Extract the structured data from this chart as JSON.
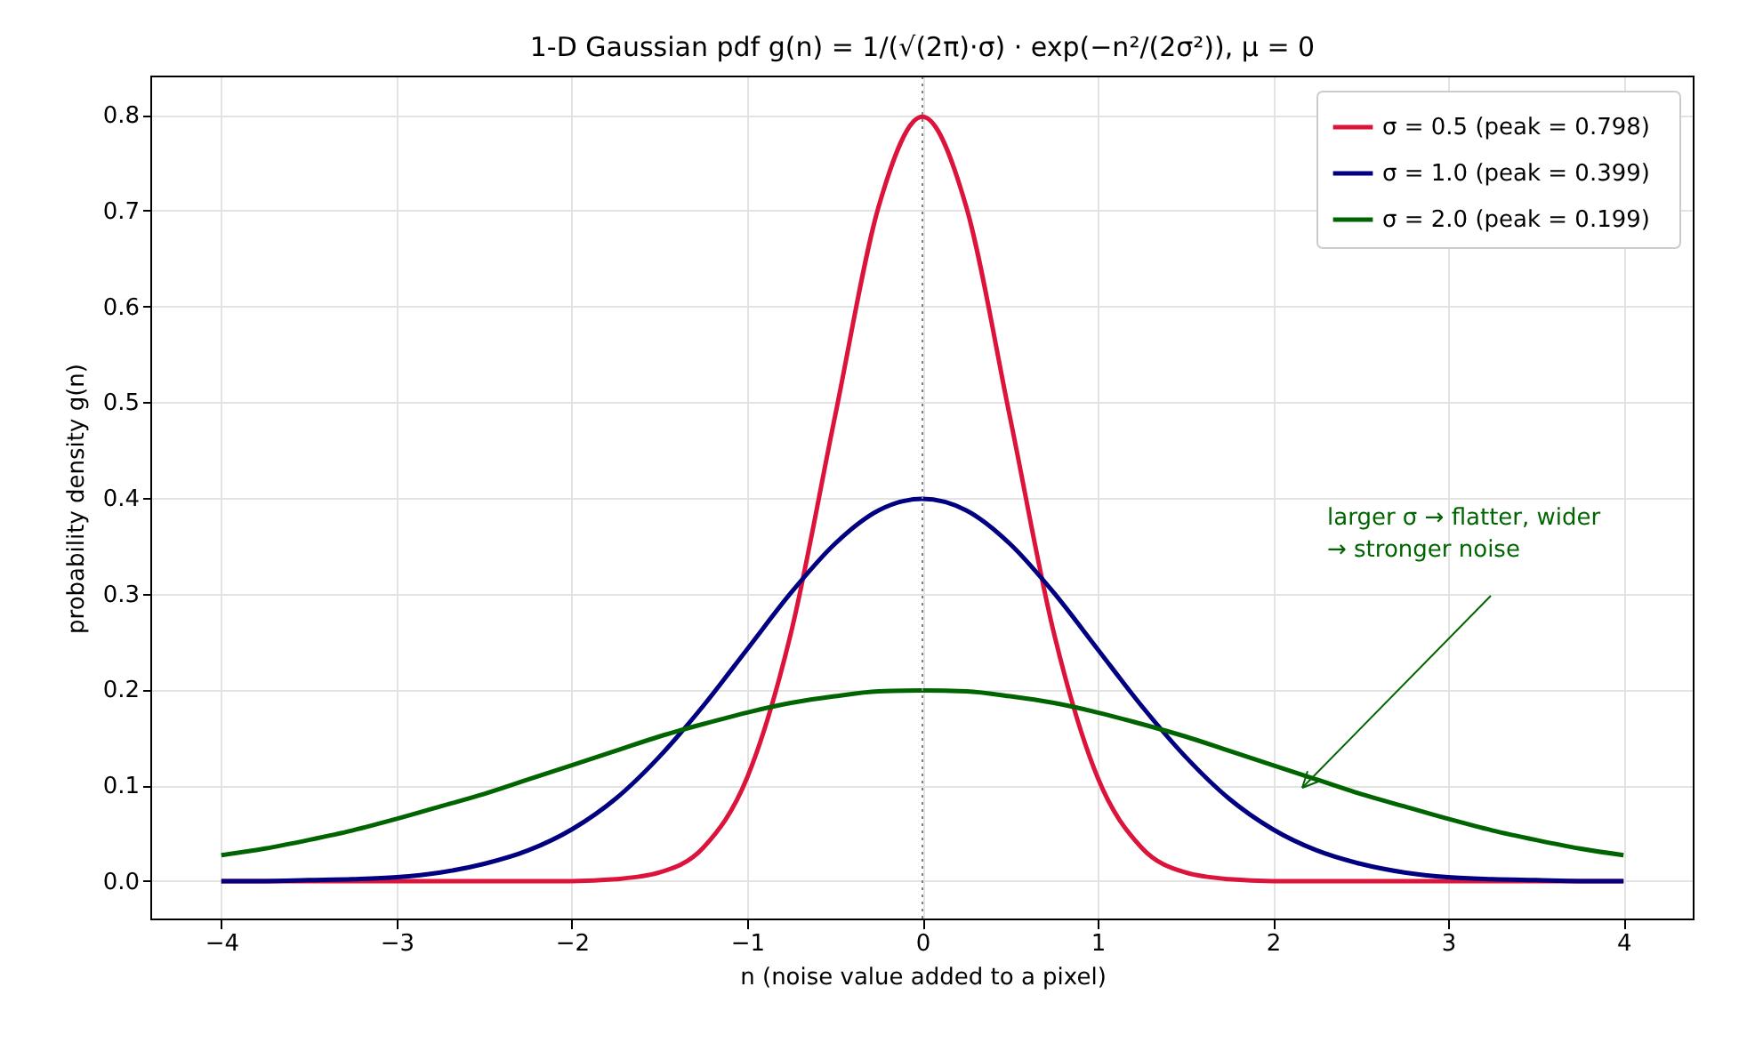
{
  "chart_data": {
    "type": "line",
    "title": "1-D Gaussian pdf  g(n) = 1/(√(2π)·σ) · exp(−n²/(2σ²)),  μ = 0",
    "xlabel": "n  (noise value added to a pixel)",
    "ylabel": "probability density  g(n)",
    "x": [
      -4,
      -3.75,
      -3.5,
      -3.25,
      -3,
      -2.75,
      -2.5,
      -2.25,
      -2,
      -1.75,
      -1.5,
      -1.25,
      -1,
      -0.75,
      -0.5,
      -0.25,
      0,
      0.25,
      0.5,
      0.75,
      1,
      1.25,
      1.5,
      1.75,
      2,
      2.25,
      2.5,
      2.75,
      3,
      3.25,
      3.5,
      3.75,
      4
    ],
    "series": [
      {
        "name": "σ = 0.5   (peak = 0.798)",
        "color": "#dc143c",
        "values": [
          0,
          0,
          0,
          0,
          0,
          0,
          0,
          0,
          0,
          0.002,
          0.009,
          0.035,
          0.108,
          0.259,
          0.484,
          0.704,
          0.798,
          0.704,
          0.484,
          0.259,
          0.108,
          0.035,
          0.009,
          0.002,
          0,
          0,
          0,
          0,
          0,
          0,
          0,
          0,
          0
        ]
      },
      {
        "name": "σ = 1.0   (peak = 0.399)",
        "color": "#000080",
        "values": [
          0,
          0,
          0.001,
          0.002,
          0.004,
          0.009,
          0.018,
          0.032,
          0.054,
          0.086,
          0.13,
          0.183,
          0.242,
          0.301,
          0.352,
          0.387,
          0.399,
          0.387,
          0.352,
          0.301,
          0.242,
          0.183,
          0.13,
          0.086,
          0.054,
          0.032,
          0.018,
          0.009,
          0.004,
          0.002,
          0.001,
          0,
          0
        ]
      },
      {
        "name": "σ = 2.0   (peak = 0.199)",
        "color": "#006400",
        "values": [
          0.027,
          0.034,
          0.043,
          0.053,
          0.065,
          0.078,
          0.091,
          0.106,
          0.121,
          0.136,
          0.151,
          0.164,
          0.176,
          0.186,
          0.193,
          0.198,
          0.199,
          0.198,
          0.193,
          0.186,
          0.176,
          0.164,
          0.151,
          0.136,
          0.121,
          0.106,
          0.091,
          0.078,
          0.065,
          0.053,
          0.043,
          0.034,
          0.027
        ]
      }
    ],
    "xlim": [
      -4.4,
      4.4
    ],
    "ylim": [
      -0.04,
      0.84
    ],
    "xticks": [
      {
        "value": -4,
        "label": "−4"
      },
      {
        "value": -3,
        "label": "−3"
      },
      {
        "value": -2,
        "label": "−2"
      },
      {
        "value": -1,
        "label": "−1"
      },
      0,
      1,
      2,
      3,
      4
    ],
    "yticks": [
      {
        "value": 0,
        "label": "0.0"
      },
      0.1,
      0.2,
      0.3,
      0.4,
      0.5,
      0.6,
      0.7,
      0.8
    ],
    "ref_lines": [
      {
        "axis": "x",
        "value": 0,
        "color": "#808080",
        "line_style": "dotted"
      }
    ],
    "annotations": [
      "larger σ → flatter, wider\n→ stronger noise"
    ],
    "grid": true,
    "legend": "top right",
    "line_style": "solid",
    "marker": "none"
  }
}
